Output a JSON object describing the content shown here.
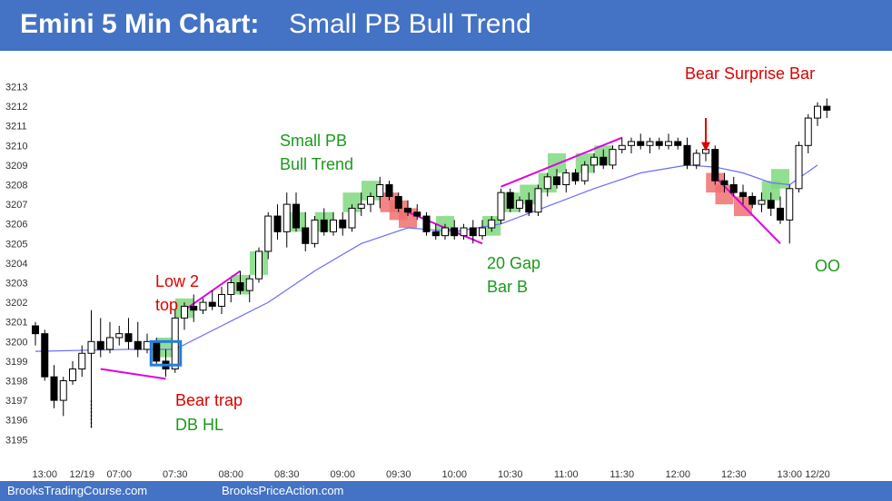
{
  "title": {
    "bold": "Emini 5 Min Chart:",
    "rest": "Small PB Bull Trend"
  },
  "footer": {
    "left": "BrooksTradingCourse.com",
    "right": "BrooksPriceAction.com"
  },
  "colors": {
    "header": "#4472c4",
    "ema": "#6b6bff",
    "trendline": "#e000e0",
    "green_zone": "#7fd87f",
    "red_zone": "#f07070",
    "annotation_red": "#dd0000",
    "annotation_green": "#1a9a1a"
  },
  "annotations": {
    "small_pb": [
      "Small PB",
      "Bull Trend"
    ],
    "low2": [
      "Low 2",
      "top"
    ],
    "bear_trap": "Bear trap",
    "db_hl": "DB HL",
    "gap_bar": [
      "20 Gap",
      "Bar B"
    ],
    "bear_surprise": "Bear Surprise Bar",
    "oo": "OO"
  },
  "chart_data": {
    "type": "candlestick",
    "title": "",
    "xlabel": "",
    "ylabel": "",
    "y_ticks": [
      3195,
      3196,
      3197,
      3198,
      3199,
      3200,
      3201,
      3202,
      3203,
      3204,
      3205,
      3206,
      3207,
      3208,
      3209,
      3210,
      3211,
      3212,
      3213
    ],
    "ylim": [
      3194.5,
      3213.5
    ],
    "x_ticks": [
      {
        "label": "13:00",
        "bar": 1
      },
      {
        "label": "12/19",
        "bar": 5
      },
      {
        "label": "07:00",
        "bar": 9
      },
      {
        "label": "07:30",
        "bar": 15
      },
      {
        "label": "08:00",
        "bar": 21
      },
      {
        "label": "08:30",
        "bar": 27
      },
      {
        "label": "09:00",
        "bar": 33
      },
      {
        "label": "09:30",
        "bar": 39
      },
      {
        "label": "10:00",
        "bar": 45
      },
      {
        "label": "10:30",
        "bar": 51
      },
      {
        "label": "11:00",
        "bar": 57
      },
      {
        "label": "11:30",
        "bar": 63
      },
      {
        "label": "12:00",
        "bar": 69
      },
      {
        "label": "12:30",
        "bar": 75
      },
      {
        "label": "13:00",
        "bar": 81
      },
      {
        "label": "12/20",
        "bar": 84
      }
    ],
    "bars": [
      [
        3200.8,
        3201.0,
        3199.8,
        3200.4
      ],
      [
        3200.4,
        3200.6,
        3198.0,
        3198.2
      ],
      [
        3198.2,
        3198.8,
        3196.6,
        3197.0
      ],
      [
        3197.0,
        3198.2,
        3196.2,
        3198.0
      ],
      [
        3198.0,
        3199.0,
        3197.8,
        3198.6
      ],
      [
        3198.6,
        3199.8,
        3198.2,
        3199.4
      ],
      [
        3199.4,
        3201.6,
        3195.6,
        3200.0
      ],
      [
        3200.0,
        3201.2,
        3199.2,
        3199.6
      ],
      [
        3199.6,
        3201.0,
        3199.4,
        3200.2
      ],
      [
        3200.2,
        3200.8,
        3199.8,
        3200.4
      ],
      [
        3200.4,
        3201.2,
        3199.6,
        3200.0
      ],
      [
        3200.0,
        3201.0,
        3199.2,
        3199.6
      ],
      [
        3199.6,
        3200.4,
        3199.4,
        3200.0
      ],
      [
        3200.0,
        3200.2,
        3198.8,
        3199.0
      ],
      [
        3199.0,
        3199.6,
        3198.2,
        3198.6
      ],
      [
        3198.6,
        3201.6,
        3198.4,
        3201.2
      ],
      [
        3201.2,
        3202.0,
        3200.6,
        3201.8
      ],
      [
        3201.8,
        3202.4,
        3201.0,
        3201.6
      ],
      [
        3201.6,
        3202.2,
        3201.4,
        3202.0
      ],
      [
        3202.0,
        3202.6,
        3201.6,
        3201.8
      ],
      [
        3201.8,
        3202.8,
        3201.4,
        3202.4
      ],
      [
        3202.4,
        3203.2,
        3202.0,
        3203.0
      ],
      [
        3203.0,
        3203.6,
        3202.4,
        3202.6
      ],
      [
        3202.6,
        3203.4,
        3202.0,
        3203.2
      ],
      [
        3203.2,
        3204.8,
        3203.0,
        3204.6
      ],
      [
        3204.6,
        3206.6,
        3204.2,
        3206.4
      ],
      [
        3206.4,
        3207.0,
        3205.2,
        3205.6
      ],
      [
        3205.6,
        3207.6,
        3204.8,
        3207.0
      ],
      [
        3207.0,
        3207.6,
        3205.6,
        3205.8
      ],
      [
        3205.8,
        3206.6,
        3204.6,
        3205.0
      ],
      [
        3205.0,
        3206.4,
        3204.8,
        3206.2
      ],
      [
        3206.2,
        3206.8,
        3205.4,
        3205.6
      ],
      [
        3205.6,
        3206.6,
        3205.4,
        3206.2
      ],
      [
        3206.2,
        3206.6,
        3205.4,
        3205.8
      ],
      [
        3205.8,
        3207.0,
        3205.6,
        3206.8
      ],
      [
        3206.8,
        3207.6,
        3206.4,
        3207.0
      ],
      [
        3207.0,
        3207.6,
        3206.6,
        3207.4
      ],
      [
        3207.4,
        3208.4,
        3206.8,
        3208.0
      ],
      [
        3208.0,
        3208.2,
        3207.2,
        3207.4
      ],
      [
        3207.4,
        3207.6,
        3206.6,
        3206.8
      ],
      [
        3206.8,
        3207.2,
        3206.4,
        3206.6
      ],
      [
        3206.6,
        3207.0,
        3206.2,
        3206.4
      ],
      [
        3206.4,
        3206.6,
        3205.4,
        3205.6
      ],
      [
        3205.6,
        3206.0,
        3205.2,
        3205.4
      ],
      [
        3205.4,
        3206.0,
        3205.2,
        3205.8
      ],
      [
        3205.8,
        3206.2,
        3205.2,
        3205.4
      ],
      [
        3205.4,
        3206.0,
        3205.2,
        3205.8
      ],
      [
        3205.8,
        3206.2,
        3205.0,
        3205.4
      ],
      [
        3205.4,
        3206.2,
        3205.2,
        3205.8
      ],
      [
        3205.8,
        3206.4,
        3205.6,
        3206.2
      ],
      [
        3206.2,
        3207.8,
        3206.0,
        3207.6
      ],
      [
        3207.6,
        3207.8,
        3206.6,
        3206.8
      ],
      [
        3206.8,
        3207.4,
        3206.6,
        3207.2
      ],
      [
        3207.2,
        3207.6,
        3206.4,
        3206.6
      ],
      [
        3206.6,
        3208.0,
        3206.4,
        3207.8
      ],
      [
        3207.8,
        3208.6,
        3207.4,
        3208.4
      ],
      [
        3208.4,
        3208.8,
        3207.8,
        3208.0
      ],
      [
        3208.0,
        3208.8,
        3207.6,
        3208.6
      ],
      [
        3208.6,
        3208.8,
        3208.0,
        3208.2
      ],
      [
        3208.2,
        3209.2,
        3208.0,
        3209.0
      ],
      [
        3209.0,
        3209.6,
        3208.6,
        3209.4
      ],
      [
        3209.4,
        3209.8,
        3208.8,
        3209.0
      ],
      [
        3209.0,
        3210.0,
        3208.8,
        3209.8
      ],
      [
        3209.8,
        3210.4,
        3209.6,
        3210.0
      ],
      [
        3210.0,
        3210.4,
        3209.6,
        3210.2
      ],
      [
        3210.2,
        3210.6,
        3209.8,
        3210.0
      ],
      [
        3210.0,
        3210.4,
        3209.6,
        3210.2
      ],
      [
        3210.2,
        3210.4,
        3209.8,
        3210.0
      ],
      [
        3210.0,
        3210.6,
        3209.8,
        3210.2
      ],
      [
        3210.2,
        3210.4,
        3209.8,
        3210.0
      ],
      [
        3210.0,
        3210.4,
        3208.8,
        3209.0
      ],
      [
        3209.0,
        3209.8,
        3208.8,
        3209.6
      ],
      [
        3209.6,
        3210.0,
        3209.2,
        3209.8
      ],
      [
        3209.8,
        3210.0,
        3208.0,
        3208.2
      ],
      [
        3208.2,
        3208.6,
        3207.6,
        3208.0
      ],
      [
        3208.0,
        3208.4,
        3207.4,
        3207.6
      ],
      [
        3207.6,
        3208.0,
        3207.0,
        3207.4
      ],
      [
        3207.4,
        3207.6,
        3206.8,
        3207.0
      ],
      [
        3207.0,
        3207.6,
        3206.6,
        3207.2
      ],
      [
        3207.2,
        3207.6,
        3206.4,
        3206.8
      ],
      [
        3206.8,
        3207.4,
        3206.0,
        3206.2
      ],
      [
        3206.2,
        3208.0,
        3205.0,
        3207.8
      ],
      [
        3207.8,
        3210.2,
        3207.6,
        3210.0
      ],
      [
        3210.0,
        3211.6,
        3209.6,
        3211.4
      ],
      [
        3211.4,
        3212.2,
        3211.0,
        3212.0
      ],
      [
        3212.0,
        3212.4,
        3211.4,
        3211.8
      ]
    ],
    "ema": [
      [
        0,
        3199.5
      ],
      [
        10,
        3199.6
      ],
      [
        15,
        3199.6
      ],
      [
        20,
        3200.8
      ],
      [
        25,
        3202.0
      ],
      [
        30,
        3203.6
      ],
      [
        35,
        3205.0
      ],
      [
        40,
        3205.8
      ],
      [
        45,
        3205.6
      ],
      [
        50,
        3206.0
      ],
      [
        55,
        3206.9
      ],
      [
        60,
        3207.8
      ],
      [
        65,
        3208.6
      ],
      [
        70,
        3209.0
      ],
      [
        73,
        3208.9
      ],
      [
        76,
        3208.6
      ],
      [
        79,
        3208.1
      ],
      [
        81,
        3208.0
      ],
      [
        84,
        3209.0
      ]
    ],
    "trendlines": [
      {
        "from": [
          7,
          3198.6
        ],
        "to": [
          14,
          3198.1
        ]
      },
      {
        "from": [
          16,
          3201.6
        ],
        "to": [
          22,
          3203.6
        ]
      },
      {
        "from": [
          40,
          3206.6
        ],
        "to": [
          48,
          3205.0
        ]
      },
      {
        "from": [
          50,
          3207.9
        ],
        "to": [
          63,
          3210.4
        ]
      },
      {
        "from": [
          73,
          3208.4
        ],
        "to": [
          80,
          3205.0
        ]
      }
    ],
    "green_zones": [
      {
        "bar": 16,
        "low": 3201.2,
        "high": 3202.2
      },
      {
        "bar": 14,
        "low": 3199.2,
        "high": 3200.2
      },
      {
        "bar": 22,
        "low": 3202.4,
        "high": 3203.4
      },
      {
        "bar": 24,
        "low": 3203.4,
        "high": 3204.6
      },
      {
        "bar": 28,
        "low": 3205.6,
        "high": 3206.6
      },
      {
        "bar": 31,
        "low": 3205.6,
        "high": 3206.6
      },
      {
        "bar": 34,
        "low": 3206.6,
        "high": 3207.6
      },
      {
        "bar": 36,
        "low": 3207.2,
        "high": 3208.2
      },
      {
        "bar": 44,
        "low": 3205.4,
        "high": 3206.4
      },
      {
        "bar": 49,
        "low": 3205.4,
        "high": 3206.4
      },
      {
        "bar": 51,
        "low": 3206.6,
        "high": 3207.6
      },
      {
        "bar": 53,
        "low": 3207.0,
        "high": 3208.0
      },
      {
        "bar": 55,
        "low": 3207.6,
        "high": 3208.6
      },
      {
        "bar": 56,
        "low": 3208.6,
        "high": 3209.6
      },
      {
        "bar": 59,
        "low": 3208.6,
        "high": 3209.6
      },
      {
        "bar": 61,
        "low": 3209.0,
        "high": 3210.0
      },
      {
        "bar": 79,
        "low": 3207.2,
        "high": 3208.2
      },
      {
        "bar": 80,
        "low": 3207.8,
        "high": 3208.8
      }
    ],
    "red_zones": [
      {
        "bar": 38,
        "low": 3206.6,
        "high": 3207.6
      },
      {
        "bar": 39,
        "low": 3206.2,
        "high": 3207.2
      },
      {
        "bar": 40,
        "low": 3205.8,
        "high": 3206.8
      },
      {
        "bar": 73,
        "low": 3207.6,
        "high": 3208.6
      },
      {
        "bar": 74,
        "low": 3207.0,
        "high": 3208.0
      },
      {
        "bar": 76,
        "low": 3206.4,
        "high": 3207.4
      }
    ],
    "highlight_box": {
      "from_bar": 13,
      "to_bar": 15,
      "low": 3198.8,
      "high": 3200.0
    },
    "arrow": {
      "bar": 72,
      "from": 3211.4,
      "to": 3209.8
    },
    "dotted_line": {
      "bar": 6,
      "from": 3197.0,
      "to": 3195.6
    }
  }
}
